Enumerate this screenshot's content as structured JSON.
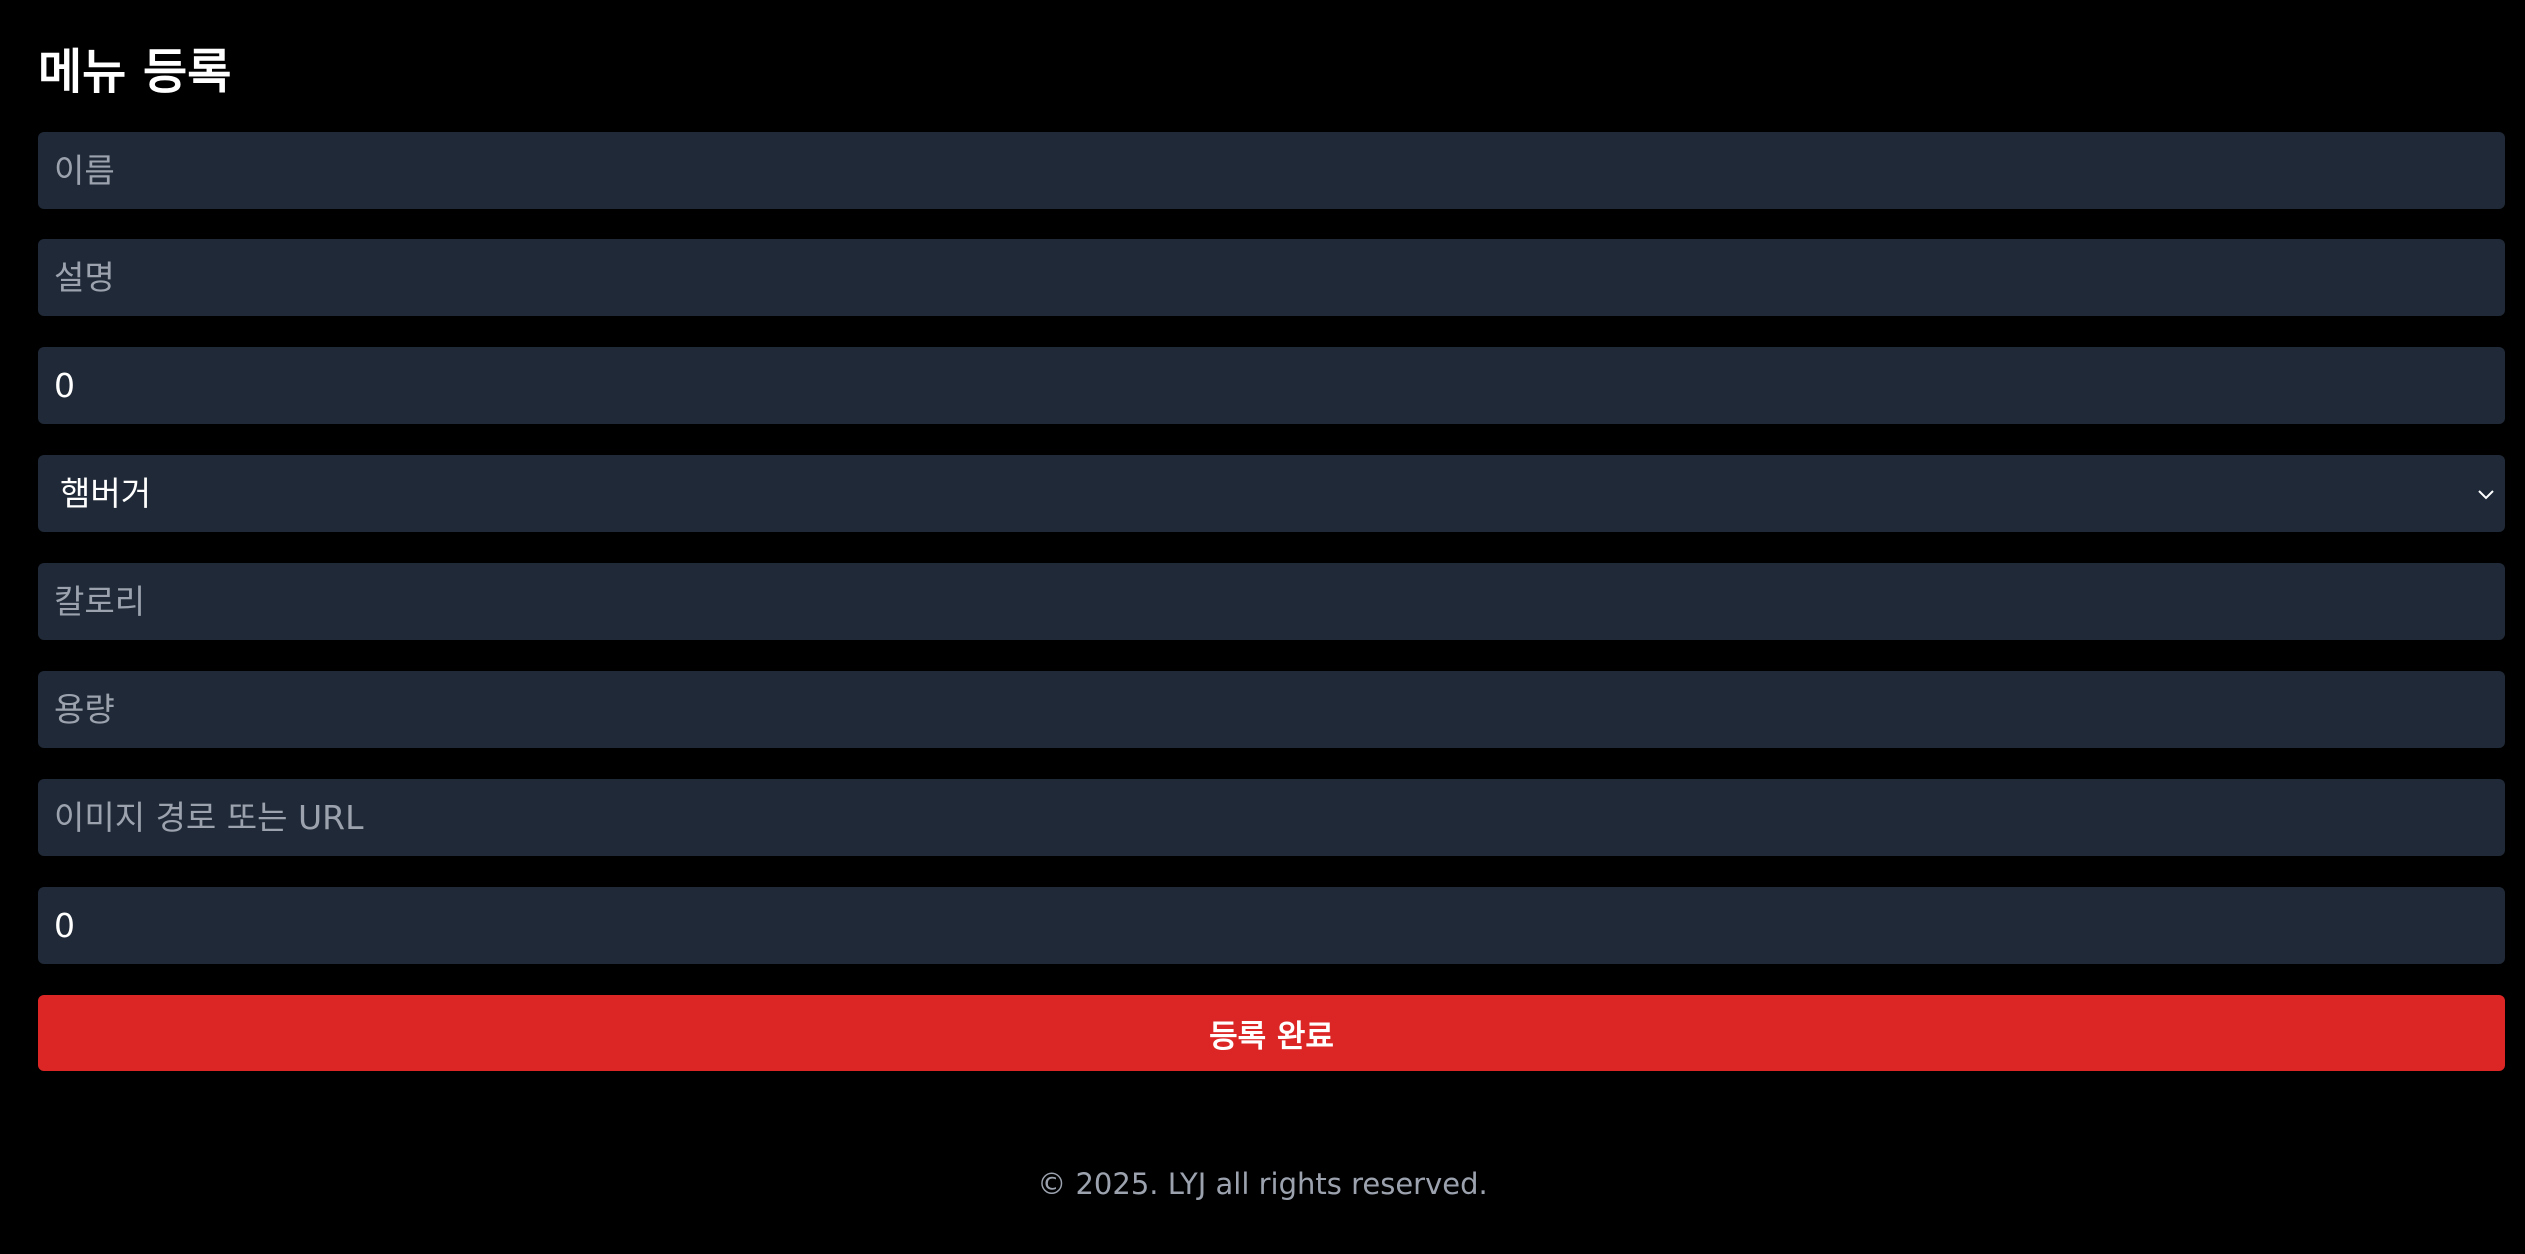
{
  "page": {
    "title": "메뉴 등록"
  },
  "form": {
    "name": {
      "placeholder": "이름",
      "value": ""
    },
    "description": {
      "placeholder": "설명",
      "value": ""
    },
    "price": {
      "value": "0"
    },
    "category": {
      "selected": "햄버거"
    },
    "calories": {
      "placeholder": "칼로리",
      "value": ""
    },
    "volume": {
      "placeholder": "용량",
      "value": ""
    },
    "image": {
      "placeholder": "이미지 경로 또는 URL",
      "value": ""
    },
    "stock": {
      "value": "0"
    }
  },
  "actions": {
    "submit_label": "등록 완료"
  },
  "footer": {
    "copyright": "© 2025. LYJ all rights reserved."
  },
  "colors": {
    "background": "#000000",
    "field": "#1f2937",
    "placeholder": "#9ca3af",
    "accent": "#dc2626"
  },
  "icons": {
    "select_arrow": "chevron-down-icon"
  }
}
